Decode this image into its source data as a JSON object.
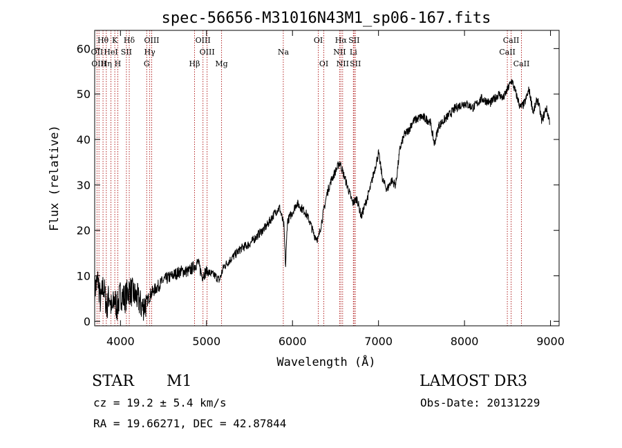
{
  "chart_data": {
    "type": "line",
    "title": "spec-56656-M31016N43M1_sp06-167.fits",
    "xlabel": "Wavelength (Å)",
    "ylabel": "Flux (relative)",
    "xlim": [
      3700,
      9100
    ],
    "ylim": [
      -1,
      64
    ],
    "xticks": [
      4000,
      5000,
      6000,
      7000,
      8000,
      9000
    ],
    "yticks": [
      0,
      10,
      20,
      30,
      40,
      50,
      60
    ],
    "series": [
      {
        "name": "spectrum",
        "points": [
          [
            3700,
            7
          ],
          [
            3740,
            9
          ],
          [
            3770,
            4
          ],
          [
            3800,
            8
          ],
          [
            3840,
            3
          ],
          [
            3870,
            6
          ],
          [
            3900,
            2
          ],
          [
            3930,
            5
          ],
          [
            3960,
            3
          ],
          [
            4000,
            6
          ],
          [
            4050,
            5
          ],
          [
            4100,
            7
          ],
          [
            4150,
            6
          ],
          [
            4200,
            5
          ],
          [
            4250,
            3
          ],
          [
            4300,
            4
          ],
          [
            4350,
            6
          ],
          [
            4400,
            7
          ],
          [
            4450,
            8
          ],
          [
            4500,
            9
          ],
          [
            4600,
            10
          ],
          [
            4700,
            11
          ],
          [
            4800,
            11
          ],
          [
            4900,
            13
          ],
          [
            4950,
            10
          ],
          [
            5000,
            11
          ],
          [
            5100,
            10
          ],
          [
            5150,
            9
          ],
          [
            5200,
            12
          ],
          [
            5300,
            14
          ],
          [
            5400,
            16
          ],
          [
            5500,
            17
          ],
          [
            5600,
            19
          ],
          [
            5700,
            21
          ],
          [
            5800,
            24
          ],
          [
            5850,
            25
          ],
          [
            5900,
            21
          ],
          [
            5920,
            12
          ],
          [
            5940,
            22
          ],
          [
            6000,
            24
          ],
          [
            6050,
            26
          ],
          [
            6100,
            25
          ],
          [
            6150,
            24
          ],
          [
            6200,
            22
          ],
          [
            6250,
            19
          ],
          [
            6300,
            18
          ],
          [
            6350,
            23
          ],
          [
            6400,
            28
          ],
          [
            6450,
            31
          ],
          [
            6500,
            33
          ],
          [
            6550,
            35
          ],
          [
            6600,
            32
          ],
          [
            6650,
            29
          ],
          [
            6700,
            26
          ],
          [
            6750,
            27
          ],
          [
            6800,
            23
          ],
          [
            6850,
            26
          ],
          [
            6900,
            29
          ],
          [
            6950,
            33
          ],
          [
            7000,
            37
          ],
          [
            7050,
            31
          ],
          [
            7100,
            29
          ],
          [
            7150,
            31
          ],
          [
            7200,
            30
          ],
          [
            7250,
            38
          ],
          [
            7300,
            41
          ],
          [
            7350,
            42
          ],
          [
            7400,
            44
          ],
          [
            7500,
            45
          ],
          [
            7600,
            44
          ],
          [
            7650,
            39
          ],
          [
            7700,
            43
          ],
          [
            7800,
            45
          ],
          [
            7900,
            47
          ],
          [
            8000,
            48
          ],
          [
            8100,
            47
          ],
          [
            8200,
            49
          ],
          [
            8300,
            48
          ],
          [
            8400,
            50
          ],
          [
            8450,
            49
          ],
          [
            8500,
            51
          ],
          [
            8550,
            53
          ],
          [
            8600,
            50
          ],
          [
            8650,
            47
          ],
          [
            8700,
            48
          ],
          [
            8750,
            51
          ],
          [
            8800,
            46
          ],
          [
            8850,
            49
          ],
          [
            8900,
            44
          ],
          [
            8950,
            47
          ],
          [
            8990,
            44
          ]
        ]
      }
    ],
    "line_markers": [
      {
        "label": "Hθ",
        "x": 3797,
        "row": 0
      },
      {
        "label": "K",
        "x": 3934,
        "row": 0
      },
      {
        "label": "Hδ",
        "x": 4102,
        "row": 0
      },
      {
        "label": "OIII",
        "x": 4363,
        "row": 0
      },
      {
        "label": "OIII",
        "x": 4959,
        "row": 0
      },
      {
        "label": "OI",
        "x": 6300,
        "row": 0
      },
      {
        "label": "Hα",
        "x": 6563,
        "row": 0
      },
      {
        "label": "SII",
        "x": 6716,
        "row": 0
      },
      {
        "label": "CaII",
        "x": 8542,
        "row": 0
      },
      {
        "label": "OII",
        "x": 3727,
        "row": 1
      },
      {
        "label": "HeI",
        "x": 3889,
        "row": 1
      },
      {
        "label": "SII",
        "x": 4069,
        "row": 1
      },
      {
        "label": "Hγ",
        "x": 4340,
        "row": 1
      },
      {
        "label": "OIII",
        "x": 5007,
        "row": 1
      },
      {
        "label": "Na",
        "x": 5893,
        "row": 1
      },
      {
        "label": "NII",
        "x": 6548,
        "row": 1
      },
      {
        "label": "Li",
        "x": 6708,
        "row": 1
      },
      {
        "label": "CaII",
        "x": 8498,
        "row": 1
      },
      {
        "label": "OIII",
        "x": 3750,
        "row": 2
      },
      {
        "label": "Hη",
        "x": 3835,
        "row": 2
      },
      {
        "label": "H",
        "x": 3969,
        "row": 2
      },
      {
        "label": "G",
        "x": 4305,
        "row": 2
      },
      {
        "label": "Hβ",
        "x": 4861,
        "row": 2
      },
      {
        "label": "Mg",
        "x": 5175,
        "row": 2
      },
      {
        "label": "OI",
        "x": 6364,
        "row": 2
      },
      {
        "label": "NII",
        "x": 6583,
        "row": 2
      },
      {
        "label": "SII",
        "x": 6731,
        "row": 2
      },
      {
        "label": "CaII",
        "x": 8662,
        "row": 2
      }
    ]
  },
  "info": {
    "class": "STAR",
    "subclass": "M1",
    "survey": "LAMOST DR3",
    "cz": "cz = 19.2 ± 5.4 km/s",
    "obs_date": "Obs-Date: 20131229",
    "coords": "RA =  19.66271, DEC =  42.87844"
  }
}
